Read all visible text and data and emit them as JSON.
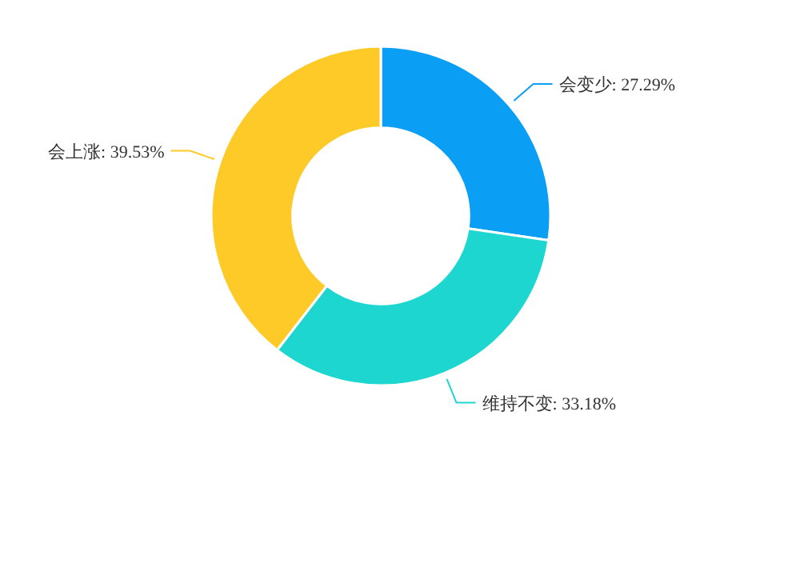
{
  "chart_data": {
    "type": "donut",
    "categories": [
      "会变少",
      "维持不变",
      "会上涨"
    ],
    "values": [
      27.29,
      33.18,
      39.53
    ],
    "value_labels": [
      "27.29%",
      "33.18%",
      "39.53%"
    ],
    "colors": [
      "#0a9ff5",
      "#1dd6cf",
      "#fdca27"
    ]
  }
}
